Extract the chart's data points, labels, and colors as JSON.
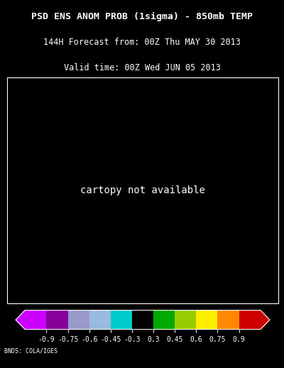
{
  "title_line1": "PSD ENS ANOM PROB (1sigma) - 850mb TEMP",
  "title_line2": "144H Forecast from: 00Z Thu MAY 30 2013",
  "title_line3": "Valid time: 00Z Wed JUN 05 2013",
  "colorbar_labels": [
    "-0.9",
    "-0.75",
    "-0.6",
    "-0.45",
    "-0.3",
    "0.3",
    "0.45",
    "0.6",
    "0.75",
    "0.9"
  ],
  "colorbar_colors": [
    "#cc00ff",
    "#880099",
    "#9999cc",
    "#99bbdd",
    "#00cccc",
    "#000000",
    "#00aa00",
    "#99cc00",
    "#ffee00",
    "#ff8800",
    "#cc0000"
  ],
  "background_color": "#000000",
  "text_color": "#ffffff",
  "credit_text": "BNDS: COLA/IGES",
  "fig_width": 4.0,
  "fig_height": 5.18,
  "title_fontsize": 9.5,
  "subtitle_fontsize": 8.5,
  "credit_fontsize": 6.0,
  "map_extent": [
    -170,
    10,
    5,
    75
  ],
  "grid_lons": [
    -160,
    -140,
    -120,
    -100,
    -80,
    -60,
    -40,
    -20,
    0
  ],
  "grid_lats": [
    20,
    40,
    60
  ]
}
